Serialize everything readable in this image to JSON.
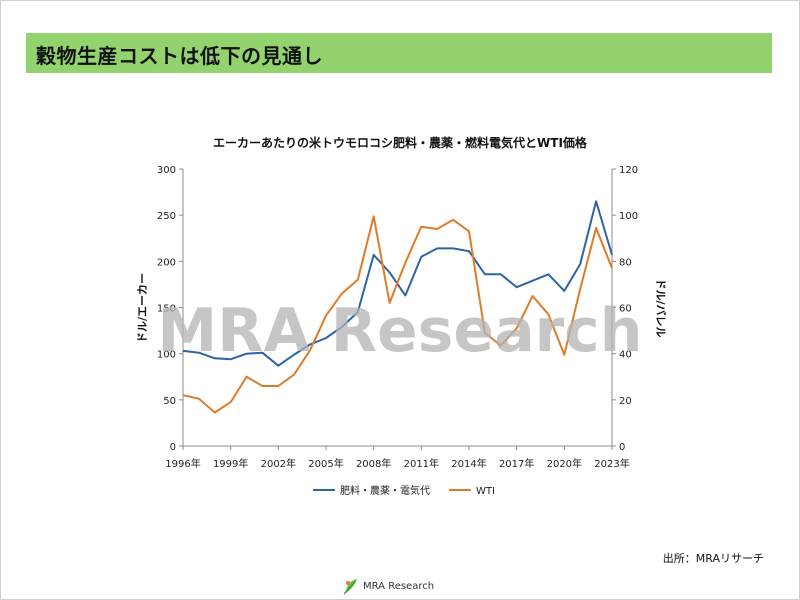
{
  "slide": {
    "title": "穀物生産コストは低下の見通し",
    "source": "出所：MRAリサーチ",
    "footer_brand": "MRA Research",
    "watermark": "MRA Research"
  },
  "colors": {
    "title_bar": "#92d36e",
    "series_fertilizer": "#2e63a6",
    "series_wti": "#e07b28",
    "watermark": "#b3b3b3"
  },
  "chart_data": {
    "type": "line",
    "title": "エーカーあたりの米トウモロコシ肥料・農薬・燃料電気代とWTI価格",
    "ylabel": "ドル/エーカー",
    "ylabel_right": "ドル/バレル",
    "ylim": [
      0,
      300
    ],
    "ylim_right": [
      0,
      120
    ],
    "yticks": [
      0,
      50,
      100,
      150,
      200,
      250,
      300
    ],
    "yticks_right": [
      0,
      20,
      40,
      60,
      80,
      100,
      120
    ],
    "x": [
      1996,
      1997,
      1998,
      1999,
      2000,
      2001,
      2002,
      2003,
      2004,
      2005,
      2006,
      2007,
      2008,
      2009,
      2010,
      2011,
      2012,
      2013,
      2014,
      2015,
      2016,
      2017,
      2018,
      2019,
      2020,
      2021,
      2022,
      2023
    ],
    "xtick_labels": [
      "1996年",
      "1999年",
      "2002年",
      "2005年",
      "2008年",
      "2011年",
      "2014年",
      "2017年",
      "2020年",
      "2023年"
    ],
    "grid": false,
    "legend_position": "bottom",
    "series": [
      {
        "name": "肥料・農薬・電気代",
        "axis": "left",
        "values": [
          103,
          101,
          95,
          94,
          100,
          101,
          87,
          99,
          110,
          117,
          129,
          145,
          207,
          188,
          163,
          205,
          214,
          214,
          211,
          186,
          186,
          172,
          179,
          186,
          168,
          197,
          265,
          207
        ]
      },
      {
        "name": "WTI",
        "axis": "right",
        "values": [
          22,
          20.5,
          14.5,
          19,
          30,
          26,
          26,
          31,
          41.5,
          56.5,
          66,
          72,
          99.5,
          62,
          79.5,
          95,
          94,
          98,
          93,
          49,
          43.5,
          51,
          65,
          57,
          39.5,
          68,
          94.5,
          77
        ]
      }
    ]
  }
}
